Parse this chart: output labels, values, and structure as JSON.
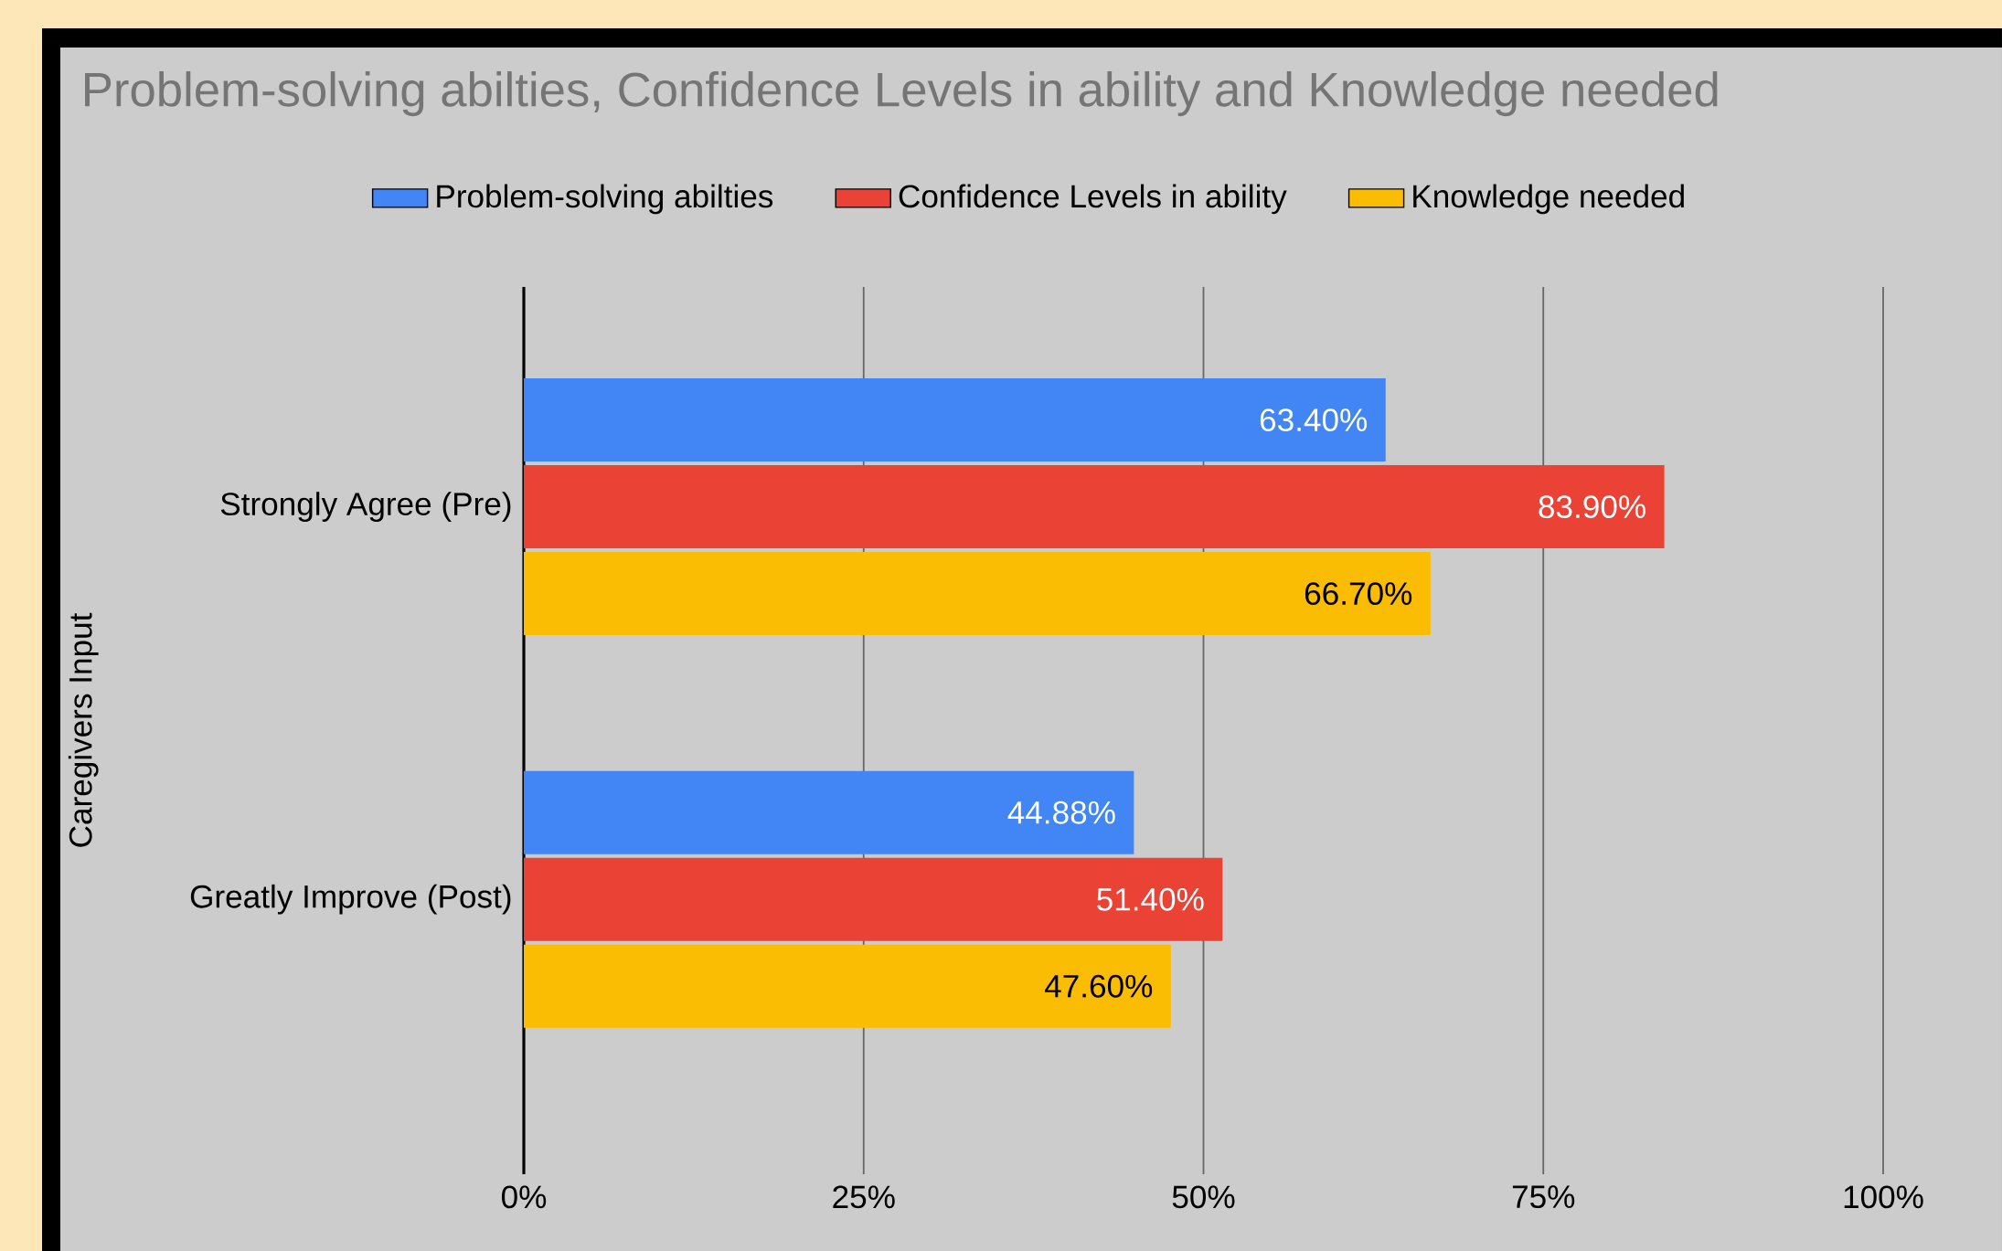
{
  "chart_data": {
    "type": "bar",
    "orientation": "horizontal",
    "title": "Problem-solving abilties, Confidence Levels in ability and Knowledge needed",
    "ylabel": "Caregivers Input",
    "categories": [
      "Strongly Agree (Pre)",
      "Greatly Improve (Post)"
    ],
    "series": [
      {
        "name": "Problem-solving abilties",
        "color": "#4285f4",
        "values": [
          63.4,
          44.88
        ],
        "value_labels": [
          "63.40%",
          "44.88%"
        ]
      },
      {
        "name": "Confidence Levels in ability",
        "color": "#ea4335",
        "values": [
          83.9,
          51.4
        ],
        "value_labels": [
          "83.90%",
          "51.40%"
        ]
      },
      {
        "name": "Knowledge needed",
        "color": "#fbbc04",
        "values": [
          66.7,
          47.6
        ],
        "value_labels": [
          "66.70%",
          "47.60%"
        ]
      }
    ],
    "xlim": [
      0,
      100
    ],
    "xticks": [
      {
        "value": 0,
        "label": "0%"
      },
      {
        "value": 25,
        "label": "25%"
      },
      {
        "value": 50,
        "label": "50%"
      },
      {
        "value": 75,
        "label": "75%"
      },
      {
        "value": 100,
        "label": "100%"
      }
    ],
    "grid": "x",
    "legend": "top"
  }
}
